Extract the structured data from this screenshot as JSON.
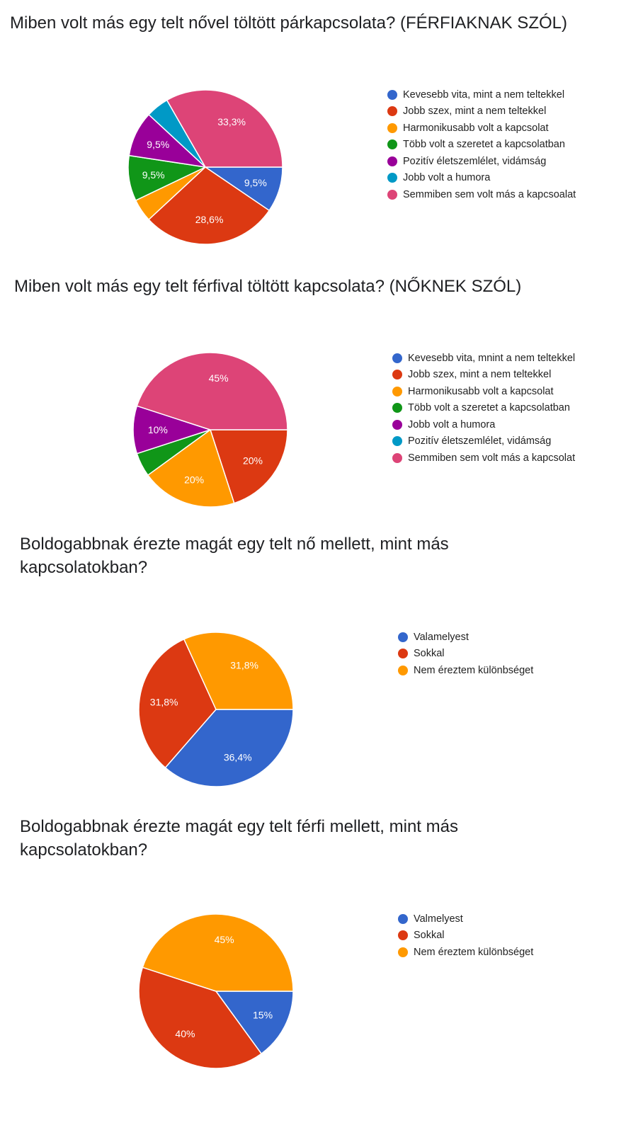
{
  "chart_data": [
    {
      "type": "pie",
      "title": "Miben volt más egy telt nővel töltött párkapcsolata? (FÉRFIAKNAK SZÓL)",
      "legend_position": "right",
      "categories": [
        "Kevesebb vita, mint a nem teltekkel",
        "Jobb szex, mint a nem teltekkel",
        "Harmonikusabb volt a kapcsolat",
        "Több volt a szeretet a kapcsolatban",
        "Pozitív életszemlélet, vidámság",
        "Jobb volt a humora",
        "Semmiben sem volt más a kapcsoalat"
      ],
      "values": [
        9.5,
        28.6,
        4.8,
        9.5,
        9.5,
        4.8,
        33.3
      ],
      "value_labels": [
        "9,5%",
        "28,6%",
        "",
        "9,5%",
        "9,5%",
        "",
        "33,3%"
      ],
      "colors": [
        "#3366cc",
        "#dc3912",
        "#ff9900",
        "#109618",
        "#990099",
        "#0099c6",
        "#dd4477"
      ]
    },
    {
      "type": "pie",
      "title": "Miben volt más egy telt férfival töltött kapcsolata? (NŐKNEK SZÓL)",
      "legend_position": "right",
      "categories": [
        "Kevesebb vita, mnint a nem teltekkel",
        "Jobb szex, mint a nem teltekkel",
        "Harmonikusabb volt a kapcsolat",
        "Több volt a szeretet a kapcsolatban",
        "Jobb volt a humora",
        "Pozitív életszemlélet, vidámság",
        "Semmiben sem volt más a kapcsolat"
      ],
      "values": [
        0,
        20,
        20,
        5,
        10,
        0,
        45
      ],
      "value_labels": [
        "",
        "20%",
        "20%",
        "",
        "10%",
        "",
        "45%"
      ],
      "colors": [
        "#3366cc",
        "#dc3912",
        "#ff9900",
        "#109618",
        "#990099",
        "#0099c6",
        "#dd4477"
      ]
    },
    {
      "type": "pie",
      "title": "Boldogabbnak érezte magát egy telt nő mellett, mint más kapcsolatokban?",
      "legend_position": "right",
      "categories": [
        "Valamelyest",
        "Sokkal",
        "Nem éreztem különbséget"
      ],
      "values": [
        36.4,
        31.8,
        31.8
      ],
      "value_labels": [
        "36,4%",
        "31,8%",
        "31,8%"
      ],
      "colors": [
        "#3366cc",
        "#dc3912",
        "#ff9900"
      ]
    },
    {
      "type": "pie",
      "title": "Boldogabbnak érezte magát egy telt férfi mellett, mint más kapcsolatokban?",
      "legend_position": "right",
      "categories": [
        "Valmelyest",
        "Sokkal",
        "Nem éreztem különbséget"
      ],
      "values": [
        15,
        40,
        45
      ],
      "value_labels": [
        "15%",
        "40%",
        "45%"
      ],
      "colors": [
        "#3366cc",
        "#dc3912",
        "#ff9900"
      ]
    }
  ]
}
